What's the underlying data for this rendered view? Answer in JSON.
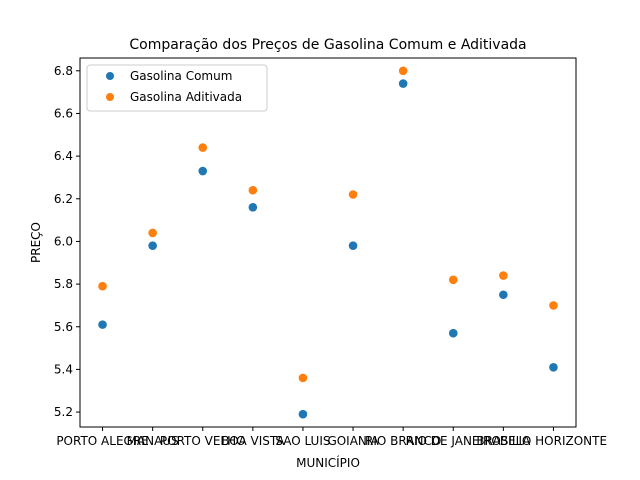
{
  "chart_data": {
    "type": "scatter",
    "title": "Comparação dos Preços de Gasolina Comum e Aditivada",
    "xlabel": "MUNICÍPIO",
    "ylabel": "PREÇO",
    "categories": [
      "PORTO ALEGRE",
      "MANAUS",
      "PORTO VELHO",
      "BOA VISTA",
      "SAO LUIS",
      "GOIANIA",
      "RIO BRANCO",
      "RIO DE JANEIRO",
      "BRASILIA",
      "BELO HORIZONTE"
    ],
    "series": [
      {
        "name": "Gasolina Comum",
        "color": "#1f77b4",
        "values": [
          5.61,
          5.98,
          6.33,
          6.16,
          5.19,
          5.98,
          6.74,
          5.57,
          5.75,
          5.41
        ]
      },
      {
        "name": "Gasolina Aditivada",
        "color": "#ff7f0e",
        "values": [
          5.79,
          6.04,
          6.44,
          6.24,
          5.36,
          6.22,
          6.8,
          5.82,
          5.84,
          5.7
        ]
      }
    ],
    "ylim": [
      5.13,
      6.86
    ],
    "yticks": [
      "5.2",
      "5.4",
      "5.6",
      "5.8",
      "6.0",
      "6.2",
      "6.4",
      "6.6",
      "6.8"
    ],
    "legend": "top-left",
    "grid": false
  }
}
